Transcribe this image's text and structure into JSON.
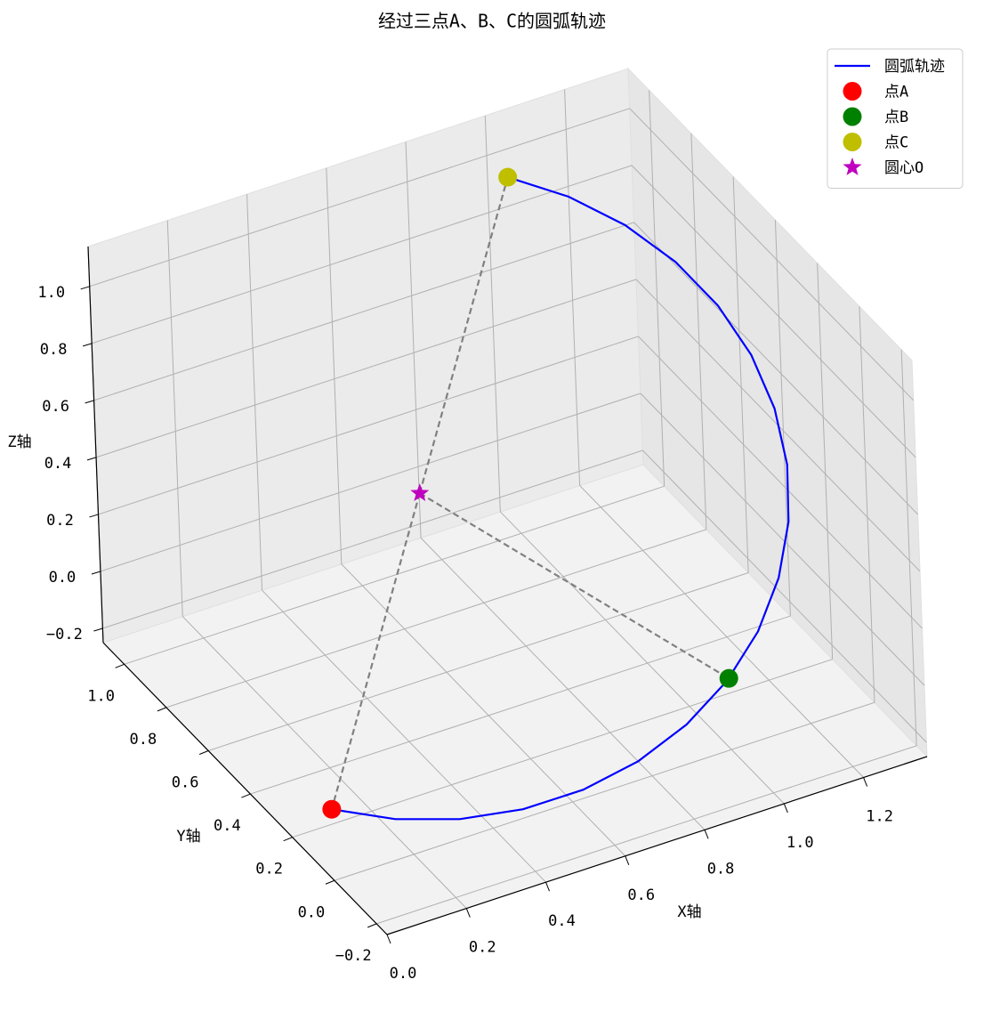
{
  "chart_data": {
    "type": "line3d",
    "title": "经过三点A、B、C的圆弧轨迹",
    "xlabel": "X轴",
    "ylabel": "Y轴",
    "zlabel": "Z轴",
    "xlim": [
      0,
      1.36
    ],
    "ylim": [
      -0.25,
      1.1
    ],
    "zlim": [
      -0.25,
      1.14
    ],
    "xticks": [
      {
        "value": 0,
        "label": "0.0"
      },
      0.2,
      0.4,
      0.6,
      0.8,
      {
        "value": 1,
        "label": "1.0"
      },
      1.2
    ],
    "yticks": [
      {
        "value": -0.2,
        "label": "−0.2"
      },
      {
        "value": 0,
        "label": "0.0"
      },
      0.2,
      0.4,
      0.6,
      0.8,
      {
        "value": 1,
        "label": "1.0"
      }
    ],
    "zticks": [
      {
        "value": -0.2,
        "label": "−0.2"
      },
      {
        "value": 0,
        "label": "0.0"
      },
      0.2,
      0.4,
      0.6,
      0.8,
      {
        "value": 1,
        "label": "1.0"
      }
    ],
    "grid": true,
    "legend": "upper right",
    "guide_color": "#808080",
    "series": [
      {
        "name": "圆弧轨迹",
        "kind": "line",
        "color": "#0000ff",
        "x": [
          0,
          0.1304,
          0.272,
          0.4206,
          0.5715,
          0.7203,
          0.8624,
          0.9935,
          1.1096,
          1.2071,
          1.2832,
          1.3355,
          1.3624,
          1.3631,
          1.3375,
          1.2866,
          1.2116,
          1.1152,
          1
        ],
        "y": [
          0,
          -0.0538,
          -0.0907,
          -0.1098,
          -0.1103,
          -0.0923,
          -0.0562,
          -0.0033,
          0.065,
          0.1464,
          0.2386,
          0.3387,
          0.4438,
          0.5505,
          0.6557,
          0.7562,
          0.8489,
          0.931,
          1
        ],
        "z": [
          0,
          -0.0538,
          -0.0907,
          -0.1098,
          -0.1103,
          -0.0923,
          -0.0562,
          -0.0033,
          0.065,
          0.1464,
          0.2386,
          0.3387,
          0.4438,
          0.5505,
          0.6557,
          0.7562,
          0.8489,
          0.931,
          1
        ]
      },
      {
        "name": "点A",
        "kind": "point",
        "marker": "circle",
        "color": "#ff0000",
        "x": [
          0
        ],
        "y": [
          0
        ],
        "z": [
          0
        ]
      },
      {
        "name": "点B",
        "kind": "point",
        "marker": "circle",
        "color": "#008000",
        "x": [
          1
        ],
        "y": [
          0
        ],
        "z": [
          0
        ]
      },
      {
        "name": "点C",
        "kind": "point",
        "marker": "circle",
        "color": "#bfbf00",
        "x": [
          1
        ],
        "y": [
          1
        ],
        "z": [
          1
        ]
      },
      {
        "name": "圆心O",
        "kind": "center",
        "marker": "star",
        "color": "#bf00bf",
        "x": [
          0.5
        ],
        "y": [
          0.5
        ],
        "z": [
          0.5
        ]
      }
    ]
  }
}
